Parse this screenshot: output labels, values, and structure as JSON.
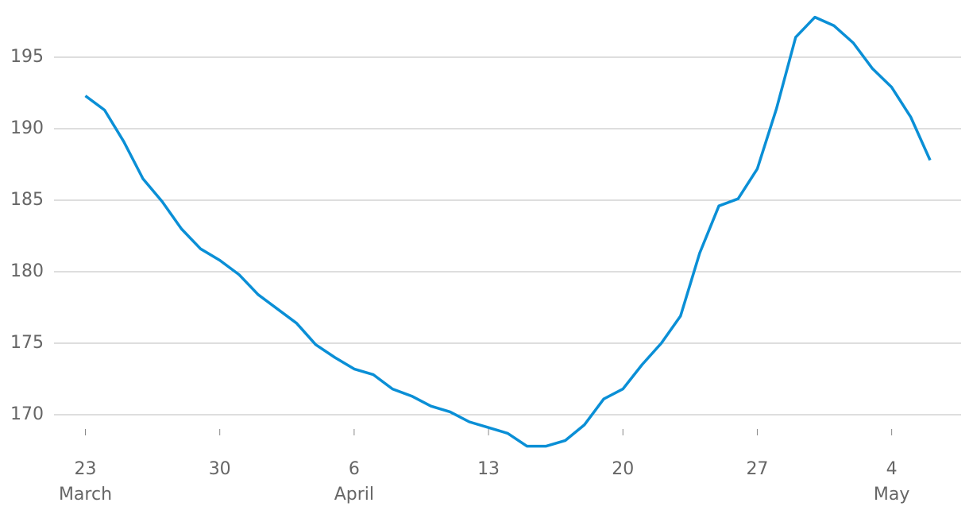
{
  "chart_data": {
    "type": "line",
    "categories": [
      "23",
      null,
      null,
      null,
      null,
      null,
      null,
      "30",
      null,
      null,
      null,
      null,
      null,
      null,
      "6",
      null,
      null,
      null,
      null,
      null,
      null,
      "13",
      null,
      null,
      null,
      null,
      null,
      null,
      "20",
      null,
      null,
      null,
      null,
      null,
      null,
      "27",
      null,
      null,
      null,
      null,
      null,
      null,
      "4",
      null,
      null
    ],
    "months": [
      "March",
      null,
      null,
      null,
      null,
      null,
      null,
      null,
      null,
      null,
      null,
      null,
      null,
      null,
      "April",
      null,
      null,
      null,
      null,
      null,
      null,
      null,
      null,
      null,
      null,
      null,
      null,
      null,
      null,
      null,
      null,
      null,
      null,
      null,
      null,
      null,
      null,
      null,
      null,
      null,
      null,
      null,
      "May",
      null,
      null
    ],
    "series": [
      {
        "color": "#0a8fd6",
        "values": [
          192.3,
          191.3,
          189.1,
          186.5,
          184.9,
          183.0,
          181.6,
          180.8,
          179.8,
          178.4,
          177.4,
          176.4,
          174.9,
          174.0,
          173.2,
          172.8,
          171.8,
          171.3,
          170.6,
          170.2,
          169.5,
          169.1,
          168.7,
          167.8,
          167.8,
          168.2,
          169.3,
          171.1,
          171.8,
          173.5,
          175.0,
          176.9,
          181.3,
          184.6,
          185.1,
          187.2,
          191.4,
          196.4,
          197.8,
          197.2,
          196.0,
          194.2,
          192.9,
          190.8,
          187.8
        ]
      }
    ],
    "ylim": [
      167.5,
      198.5
    ],
    "yticks": [
      170,
      175,
      180,
      185,
      190,
      195
    ],
    "grid": true
  }
}
